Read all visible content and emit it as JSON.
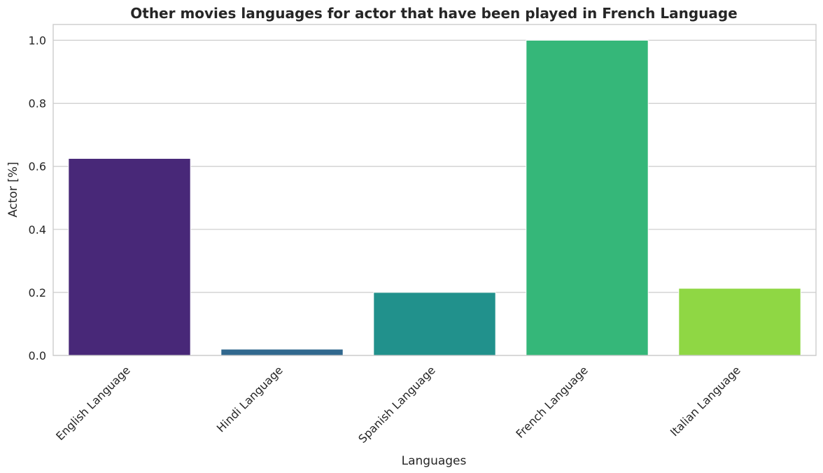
{
  "chart_data": {
    "type": "bar",
    "title": "Other movies languages for actor that have been played in French Language",
    "xlabel": "Languages",
    "ylabel": "Actor [%]",
    "categories": [
      "English Language",
      "Hindi Language",
      "Spanish Language",
      "French Language",
      "Italian Language"
    ],
    "values": [
      0.625,
      0.02,
      0.2,
      1.0,
      0.213
    ],
    "colors": [
      "#482878",
      "#31688e",
      "#21918c",
      "#35b779",
      "#8fd744"
    ],
    "ylim": [
      0,
      1.05
    ],
    "yticks": [
      0.0,
      0.2,
      0.4,
      0.6,
      0.8,
      1.0
    ],
    "ytick_labels": [
      "0.0",
      "0.2",
      "0.4",
      "0.6",
      "0.8",
      "1.0"
    ],
    "grid": "horizontal",
    "legend": "none"
  }
}
